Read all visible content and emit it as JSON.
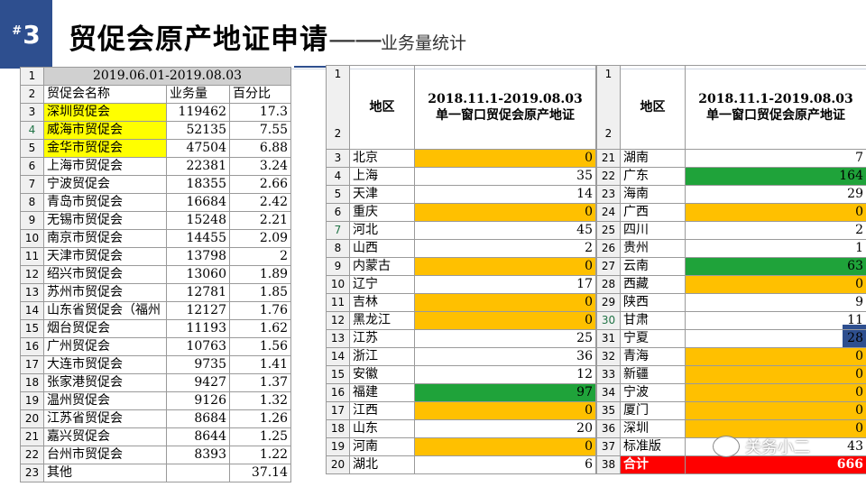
{
  "header": {
    "badge_hash": "#",
    "badge_num": "3",
    "title": "贸促会原产地证申请",
    "dash": "——",
    "subtitle": "业务量统计"
  },
  "colors": {
    "accent": "#2e4f8f",
    "highlight_yellow": "#ffff00",
    "zero_orange": "#ffc000",
    "top_green": "#1fa33a",
    "total_red": "#ff0000"
  },
  "table1": {
    "period": "2019.06.01-2019.08.03",
    "columns": [
      "贸促会名称",
      "业务量",
      "百分比"
    ],
    "rows": [
      {
        "rn": "3",
        "name": "深圳贸促会",
        "volume": "119462",
        "pct": "17.3",
        "hl": true
      },
      {
        "rn": "4",
        "name": "威海市贸促会",
        "volume": "52135",
        "pct": "7.55",
        "hl": true
      },
      {
        "rn": "5",
        "name": "金华市贸促会",
        "volume": "47504",
        "pct": "6.88",
        "hl": true
      },
      {
        "rn": "6",
        "name": "上海市贸促会",
        "volume": "22381",
        "pct": "3.24"
      },
      {
        "rn": "7",
        "name": "宁波贸促会",
        "volume": "18355",
        "pct": "2.66"
      },
      {
        "rn": "8",
        "name": "青岛市贸促会",
        "volume": "16684",
        "pct": "2.42"
      },
      {
        "rn": "9",
        "name": "无锡市贸促会",
        "volume": "15248",
        "pct": "2.21"
      },
      {
        "rn": "10",
        "name": "南京市贸促会",
        "volume": "14455",
        "pct": "2.09"
      },
      {
        "rn": "11",
        "name": "天津市贸促会",
        "volume": "13798",
        "pct": "2"
      },
      {
        "rn": "12",
        "name": "绍兴市贸促会",
        "volume": "13060",
        "pct": "1.89"
      },
      {
        "rn": "13",
        "name": "苏州市贸促会",
        "volume": "12781",
        "pct": "1.85"
      },
      {
        "rn": "14",
        "name": "山东省贸促会（福州",
        "volume": "12127",
        "pct": "1.76"
      },
      {
        "rn": "15",
        "name": "烟台贸促会",
        "volume": "11193",
        "pct": "1.62"
      },
      {
        "rn": "16",
        "name": "广州贸促会",
        "volume": "10763",
        "pct": "1.56"
      },
      {
        "rn": "17",
        "name": "大连市贸促会",
        "volume": "9735",
        "pct": "1.41"
      },
      {
        "rn": "18",
        "name": "张家港贸促会",
        "volume": "9427",
        "pct": "1.37"
      },
      {
        "rn": "19",
        "name": "温州贸促会",
        "volume": "9126",
        "pct": "1.32"
      },
      {
        "rn": "20",
        "name": "江苏省贸促会",
        "volume": "8684",
        "pct": "1.26"
      },
      {
        "rn": "21",
        "name": "嘉兴贸促会",
        "volume": "8644",
        "pct": "1.25"
      },
      {
        "rn": "22",
        "name": "台州市贸促会",
        "volume": "8393",
        "pct": "1.22"
      },
      {
        "rn": "23",
        "name": "其他",
        "volume": "",
        "pct": "37.14"
      }
    ]
  },
  "table2": {
    "head_rn_top": "1",
    "head_rn_bottom": "2",
    "region_label": "地区",
    "period_line1": "2018.11.1-2019.08.03",
    "period_line2": "单一窗口贸促会原产地证",
    "rows": [
      {
        "rn": "3",
        "region": "北京",
        "value": "0",
        "color": "orange"
      },
      {
        "rn": "4",
        "region": "上海",
        "value": "35"
      },
      {
        "rn": "5",
        "region": "天津",
        "value": "14"
      },
      {
        "rn": "6",
        "region": "重庆",
        "value": "0",
        "color": "orange"
      },
      {
        "rn": "7",
        "region": "河北",
        "value": "45"
      },
      {
        "rn": "8",
        "region": "山西",
        "value": "2"
      },
      {
        "rn": "9",
        "region": "内蒙古",
        "value": "0",
        "color": "orange"
      },
      {
        "rn": "10",
        "region": "辽宁",
        "value": "17"
      },
      {
        "rn": "11",
        "region": "吉林",
        "value": "0",
        "color": "orange"
      },
      {
        "rn": "12",
        "region": "黑龙江",
        "value": "0",
        "color": "orange"
      },
      {
        "rn": "13",
        "region": "江苏",
        "value": "25"
      },
      {
        "rn": "14",
        "region": "浙江",
        "value": "36"
      },
      {
        "rn": "15",
        "region": "安徽",
        "value": "12"
      },
      {
        "rn": "16",
        "region": "福建",
        "value": "97",
        "color": "green"
      },
      {
        "rn": "17",
        "region": "江西",
        "value": "0",
        "color": "orange"
      },
      {
        "rn": "18",
        "region": "山东",
        "value": "20"
      },
      {
        "rn": "19",
        "region": "河南",
        "value": "0",
        "color": "orange"
      },
      {
        "rn": "20",
        "region": "湖北",
        "value": "6"
      }
    ]
  },
  "table3": {
    "head_rn_top": "1",
    "head_rn_bottom": "2",
    "region_label": "地区",
    "period_line1": "2018.11.1-2019.08.03",
    "period_line2": "单一窗口贸促会原产地证",
    "rows": [
      {
        "rn": "21",
        "region": "湖南",
        "value": "7"
      },
      {
        "rn": "22",
        "region": "广东",
        "value": "164",
        "color": "green"
      },
      {
        "rn": "23",
        "region": "海南",
        "value": "29"
      },
      {
        "rn": "24",
        "region": "广西",
        "value": "0",
        "color": "orange"
      },
      {
        "rn": "25",
        "region": "四川",
        "value": "2"
      },
      {
        "rn": "26",
        "region": "贵州",
        "value": "1"
      },
      {
        "rn": "27",
        "region": "云南",
        "value": "63",
        "color": "green"
      },
      {
        "rn": "28",
        "region": "西藏",
        "value": "0",
        "color": "orange"
      },
      {
        "rn": "29",
        "region": "陕西",
        "value": "9"
      },
      {
        "rn": "30",
        "region": "甘肃",
        "value": "11"
      },
      {
        "rn": "31",
        "region": "宁夏",
        "value": "28"
      },
      {
        "rn": "32",
        "region": "青海",
        "value": "0",
        "color": "orange"
      },
      {
        "rn": "33",
        "region": "新疆",
        "value": "0",
        "color": "orange"
      },
      {
        "rn": "34",
        "region": "宁波",
        "value": "0",
        "color": "orange"
      },
      {
        "rn": "35",
        "region": "厦门",
        "value": "0",
        "color": "orange"
      },
      {
        "rn": "36",
        "region": "深圳",
        "value": "0",
        "color": "orange"
      },
      {
        "rn": "37",
        "region": "标准版",
        "value": "43"
      },
      {
        "rn": "38",
        "region": "合计",
        "value": "666",
        "color": "red"
      }
    ]
  },
  "watermark": {
    "text": "关务小二",
    "icon": "wechat-icon"
  }
}
